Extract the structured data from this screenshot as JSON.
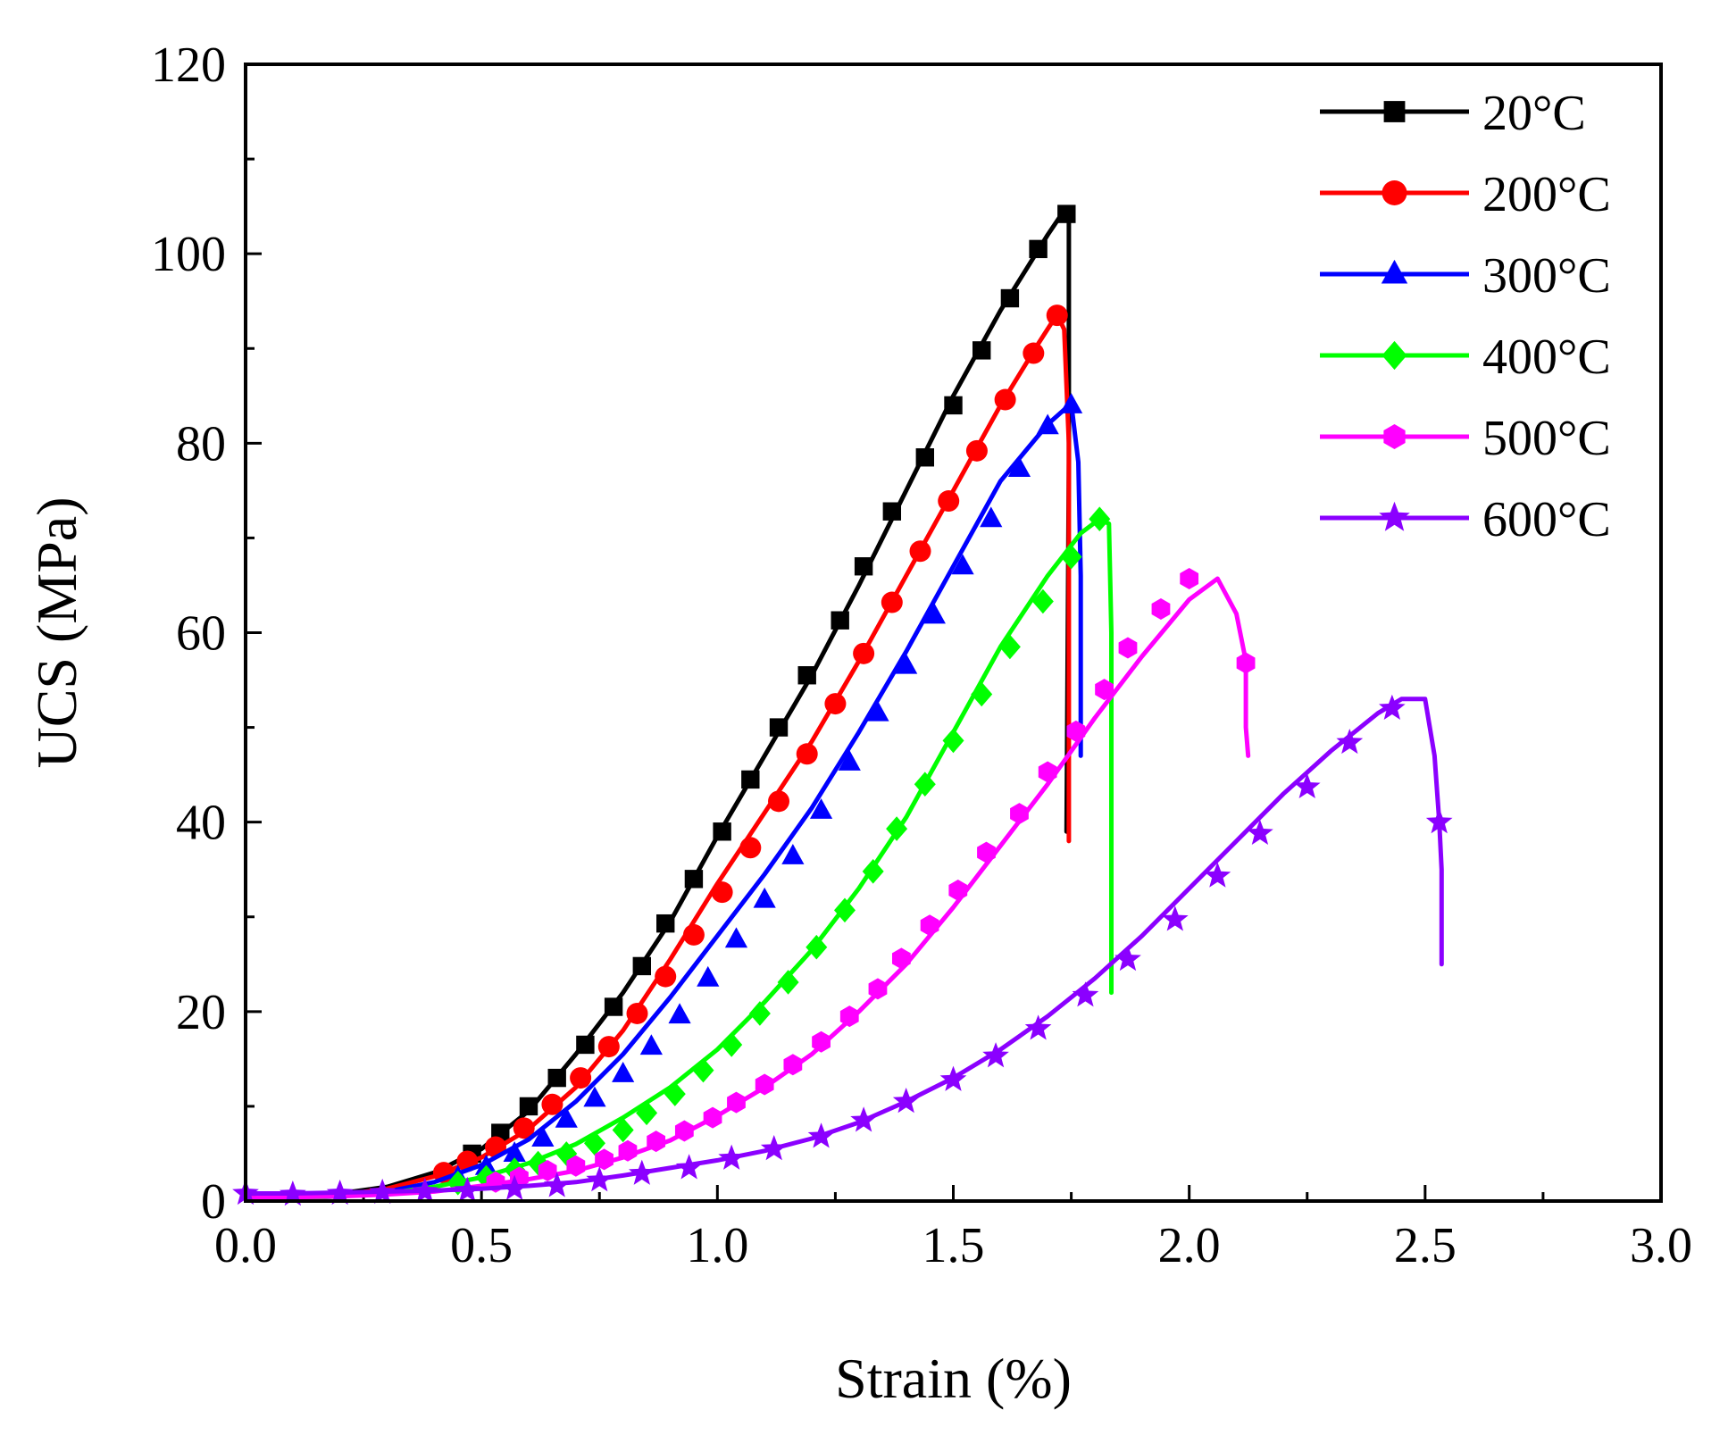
{
  "chart_data": {
    "type": "line",
    "title": "",
    "xlabel": "Strain (%)",
    "ylabel": "UCS (MPa)",
    "xlim": [
      0.0,
      3.0
    ],
    "ylim": [
      0,
      120
    ],
    "x_ticks": [
      "0.0",
      "0.5",
      "1.0",
      "1.5",
      "2.0",
      "2.5",
      "3.0"
    ],
    "y_ticks": [
      "0",
      "20",
      "40",
      "60",
      "80",
      "100",
      "120"
    ],
    "legend_position": "top-right",
    "series": [
      {
        "name": "20°C",
        "color": "#000000",
        "marker": "square",
        "line": [
          [
            0,
            0.3
          ],
          [
            0.1,
            0.4
          ],
          [
            0.2,
            0.8
          ],
          [
            0.3,
            1.5
          ],
          [
            0.4,
            3.0
          ],
          [
            0.5,
            5.5
          ],
          [
            0.6,
            9.5
          ],
          [
            0.7,
            15.5
          ],
          [
            0.8,
            22.0
          ],
          [
            0.9,
            29.5
          ],
          [
            1.0,
            38.5
          ],
          [
            1.1,
            47.0
          ],
          [
            1.2,
            55.5
          ],
          [
            1.3,
            65.0
          ],
          [
            1.4,
            75.0
          ],
          [
            1.5,
            85.0
          ],
          [
            1.6,
            94.0
          ],
          [
            1.7,
            102.0
          ],
          [
            1.73,
            104.2
          ],
          [
            1.745,
            104.5
          ],
          [
            1.745,
            78.0
          ],
          [
            1.74,
            39.0
          ]
        ],
        "markers": [
          [
            0.48,
            5.0
          ],
          [
            0.54,
            7.2
          ],
          [
            0.6,
            10.0
          ],
          [
            0.66,
            13.0
          ],
          [
            0.72,
            16.5
          ],
          [
            0.78,
            20.5
          ],
          [
            0.84,
            24.8
          ],
          [
            0.89,
            29.3
          ],
          [
            0.95,
            34.0
          ],
          [
            1.01,
            39.0
          ],
          [
            1.07,
            44.5
          ],
          [
            1.13,
            50.0
          ],
          [
            1.19,
            55.5
          ],
          [
            1.26,
            61.3
          ],
          [
            1.31,
            67.0
          ],
          [
            1.37,
            72.8
          ],
          [
            1.44,
            78.5
          ],
          [
            1.5,
            84.0
          ],
          [
            1.56,
            89.8
          ],
          [
            1.62,
            95.3
          ],
          [
            1.68,
            100.5
          ],
          [
            1.74,
            104.2
          ]
        ]
      },
      {
        "name": "200°C",
        "color": "#ff0000",
        "marker": "circle",
        "line": [
          [
            0,
            0.2
          ],
          [
            0.1,
            0.3
          ],
          [
            0.2,
            0.6
          ],
          [
            0.3,
            1.3
          ],
          [
            0.4,
            2.6
          ],
          [
            0.5,
            4.6
          ],
          [
            0.6,
            7.6
          ],
          [
            0.7,
            12.0
          ],
          [
            0.8,
            18.0
          ],
          [
            0.9,
            25.5
          ],
          [
            1.0,
            33.5
          ],
          [
            1.1,
            41.0
          ],
          [
            1.2,
            48.5
          ],
          [
            1.3,
            57.0
          ],
          [
            1.4,
            66.0
          ],
          [
            1.5,
            75.0
          ],
          [
            1.6,
            84.0
          ],
          [
            1.68,
            90.5
          ],
          [
            1.72,
            93.6
          ],
          [
            1.735,
            92.0
          ],
          [
            1.745,
            80.0
          ],
          [
            1.745,
            55.0
          ],
          [
            1.745,
            38.0
          ]
        ],
        "markers": [
          [
            0.42,
            3.0
          ],
          [
            0.47,
            4.2
          ],
          [
            0.53,
            5.7
          ],
          [
            0.59,
            7.7
          ],
          [
            0.65,
            10.2
          ],
          [
            0.71,
            13.0
          ],
          [
            0.77,
            16.3
          ],
          [
            0.83,
            19.8
          ],
          [
            0.89,
            23.7
          ],
          [
            0.95,
            28.1
          ],
          [
            1.01,
            32.6
          ],
          [
            1.07,
            37.3
          ],
          [
            1.13,
            42.2
          ],
          [
            1.19,
            47.2
          ],
          [
            1.25,
            52.5
          ],
          [
            1.31,
            57.8
          ],
          [
            1.37,
            63.2
          ],
          [
            1.43,
            68.6
          ],
          [
            1.49,
            73.9
          ],
          [
            1.55,
            79.2
          ],
          [
            1.61,
            84.6
          ],
          [
            1.67,
            89.5
          ],
          [
            1.72,
            93.5
          ]
        ]
      },
      {
        "name": "300°C",
        "color": "#0000ff",
        "marker": "triangle",
        "line": [
          [
            0,
            0.2
          ],
          [
            0.1,
            0.3
          ],
          [
            0.2,
            0.5
          ],
          [
            0.3,
            1.0
          ],
          [
            0.4,
            2.0
          ],
          [
            0.5,
            3.8
          ],
          [
            0.6,
            6.5
          ],
          [
            0.7,
            10.5
          ],
          [
            0.8,
            15.5
          ],
          [
            0.9,
            21.5
          ],
          [
            1.0,
            28.0
          ],
          [
            1.1,
            34.5
          ],
          [
            1.2,
            41.5
          ],
          [
            1.3,
            49.5
          ],
          [
            1.4,
            58.0
          ],
          [
            1.5,
            67.0
          ],
          [
            1.6,
            76.0
          ],
          [
            1.7,
            82.0
          ],
          [
            1.75,
            84.2
          ],
          [
            1.765,
            78.0
          ],
          [
            1.77,
            66.0
          ],
          [
            1.77,
            47.0
          ]
        ],
        "markers": [
          [
            0.45,
            2.5
          ],
          [
            0.51,
            3.6
          ],
          [
            0.57,
            5.0
          ],
          [
            0.63,
            6.6
          ],
          [
            0.68,
            8.6
          ],
          [
            0.74,
            10.8
          ],
          [
            0.8,
            13.4
          ],
          [
            0.86,
            16.3
          ],
          [
            0.92,
            19.6
          ],
          [
            0.98,
            23.5
          ],
          [
            1.04,
            27.6
          ],
          [
            1.1,
            31.8
          ],
          [
            1.16,
            36.4
          ],
          [
            1.22,
            41.2
          ],
          [
            1.28,
            46.3
          ],
          [
            1.34,
            51.5
          ],
          [
            1.4,
            56.5
          ],
          [
            1.46,
            61.8
          ],
          [
            1.52,
            67.0
          ],
          [
            1.58,
            72.0
          ],
          [
            1.64,
            77.3
          ],
          [
            1.7,
            81.8
          ],
          [
            1.75,
            84.0
          ]
        ]
      },
      {
        "name": "400°C",
        "color": "#00ff00",
        "marker": "diamond",
        "line": [
          [
            0,
            0.2
          ],
          [
            0.1,
            0.3
          ],
          [
            0.2,
            0.5
          ],
          [
            0.3,
            0.8
          ],
          [
            0.4,
            1.5
          ],
          [
            0.5,
            2.5
          ],
          [
            0.6,
            4.0
          ],
          [
            0.7,
            6.0
          ],
          [
            0.8,
            8.8
          ],
          [
            0.9,
            12.0
          ],
          [
            1.0,
            16.0
          ],
          [
            1.1,
            21.0
          ],
          [
            1.2,
            26.5
          ],
          [
            1.3,
            33.0
          ],
          [
            1.4,
            40.5
          ],
          [
            1.5,
            49.5
          ],
          [
            1.6,
            58.5
          ],
          [
            1.7,
            66.0
          ],
          [
            1.77,
            70.5
          ],
          [
            1.81,
            72.0
          ],
          [
            1.83,
            71.5
          ],
          [
            1.835,
            60.0
          ],
          [
            1.835,
            40.0
          ],
          [
            1.835,
            22.0
          ]
        ],
        "markers": [
          [
            0.45,
            1.9
          ],
          [
            0.51,
            2.5
          ],
          [
            0.57,
            3.3
          ],
          [
            0.62,
            4.0
          ],
          [
            0.68,
            5.0
          ],
          [
            0.74,
            6.1
          ],
          [
            0.8,
            7.5
          ],
          [
            0.85,
            9.3
          ],
          [
            0.91,
            11.3
          ],
          [
            0.97,
            13.8
          ],
          [
            1.03,
            16.5
          ],
          [
            1.09,
            19.8
          ],
          [
            1.15,
            23.1
          ],
          [
            1.21,
            26.8
          ],
          [
            1.27,
            30.7
          ],
          [
            1.33,
            34.8
          ],
          [
            1.38,
            39.3
          ],
          [
            1.44,
            44.0
          ],
          [
            1.5,
            48.6
          ],
          [
            1.56,
            53.5
          ],
          [
            1.62,
            58.5
          ],
          [
            1.69,
            63.3
          ],
          [
            1.75,
            68.0
          ],
          [
            1.81,
            72.0
          ]
        ]
      },
      {
        "name": "500°C",
        "color": "#ff00ff",
        "marker": "hexagon",
        "line": [
          [
            0,
            0.3
          ],
          [
            0.1,
            0.4
          ],
          [
            0.2,
            0.5
          ],
          [
            0.3,
            0.7
          ],
          [
            0.4,
            1.0
          ],
          [
            0.5,
            1.6
          ],
          [
            0.6,
            2.3
          ],
          [
            0.7,
            3.2
          ],
          [
            0.8,
            4.6
          ],
          [
            0.9,
            6.4
          ],
          [
            1.0,
            9.0
          ],
          [
            1.1,
            12.0
          ],
          [
            1.2,
            15.5
          ],
          [
            1.3,
            20.0
          ],
          [
            1.4,
            25.0
          ],
          [
            1.5,
            31.0
          ],
          [
            1.6,
            37.5
          ],
          [
            1.7,
            44.0
          ],
          [
            1.8,
            51.0
          ],
          [
            1.9,
            57.5
          ],
          [
            2.0,
            63.5
          ],
          [
            2.06,
            65.7
          ],
          [
            2.1,
            62.0
          ],
          [
            2.12,
            57.0
          ],
          [
            2.12,
            50.0
          ],
          [
            2.125,
            47.0
          ]
        ],
        "markers": [
          [
            0.53,
            2.0
          ],
          [
            0.58,
            2.5
          ],
          [
            0.64,
            3.2
          ],
          [
            0.7,
            3.7
          ],
          [
            0.76,
            4.4
          ],
          [
            0.81,
            5.3
          ],
          [
            0.87,
            6.3
          ],
          [
            0.93,
            7.4
          ],
          [
            0.99,
            8.8
          ],
          [
            1.04,
            10.4
          ],
          [
            1.1,
            12.3
          ],
          [
            1.16,
            14.4
          ],
          [
            1.22,
            16.8
          ],
          [
            1.28,
            19.5
          ],
          [
            1.34,
            22.4
          ],
          [
            1.39,
            25.6
          ],
          [
            1.45,
            29.1
          ],
          [
            1.51,
            32.8
          ],
          [
            1.57,
            36.8
          ],
          [
            1.64,
            40.9
          ],
          [
            1.7,
            45.3
          ],
          [
            1.76,
            49.6
          ],
          [
            1.82,
            54.0
          ],
          [
            1.87,
            58.4
          ],
          [
            1.94,
            62.5
          ],
          [
            2.0,
            65.7
          ],
          [
            2.12,
            56.8
          ]
        ]
      },
      {
        "name": "600°C",
        "color": "#8b00ff",
        "marker": "star",
        "line": [
          [
            0,
            0.8
          ],
          [
            0.1,
            0.8
          ],
          [
            0.2,
            0.9
          ],
          [
            0.3,
            1.0
          ],
          [
            0.4,
            1.1
          ],
          [
            0.5,
            1.3
          ],
          [
            0.6,
            1.6
          ],
          [
            0.7,
            2.0
          ],
          [
            0.8,
            2.7
          ],
          [
            0.9,
            3.5
          ],
          [
            1.0,
            4.3
          ],
          [
            1.1,
            5.3
          ],
          [
            1.2,
            6.6
          ],
          [
            1.3,
            8.3
          ],
          [
            1.4,
            10.5
          ],
          [
            1.5,
            13.0
          ],
          [
            1.6,
            16.0
          ],
          [
            1.7,
            19.5
          ],
          [
            1.8,
            23.5
          ],
          [
            1.9,
            28.0
          ],
          [
            2.0,
            33.0
          ],
          [
            2.1,
            38.0
          ],
          [
            2.2,
            43.0
          ],
          [
            2.3,
            47.5
          ],
          [
            2.4,
            51.5
          ],
          [
            2.45,
            53.0
          ],
          [
            2.5,
            53.0
          ],
          [
            2.52,
            47.0
          ],
          [
            2.53,
            40.0
          ],
          [
            2.535,
            35.0
          ],
          [
            2.535,
            25.0
          ]
        ],
        "markers": [
          [
            0,
            0.8
          ],
          [
            0.1,
            0.7
          ],
          [
            0.2,
            0.8
          ],
          [
            0.29,
            0.9
          ],
          [
            0.38,
            1.0
          ],
          [
            0.47,
            1.1
          ],
          [
            0.57,
            1.3
          ],
          [
            0.66,
            1.6
          ],
          [
            0.75,
            2.2
          ],
          [
            0.84,
            2.9
          ],
          [
            0.94,
            3.5
          ],
          [
            1.03,
            4.5
          ],
          [
            1.12,
            5.5
          ],
          [
            1.22,
            6.8
          ],
          [
            1.31,
            8.5
          ],
          [
            1.4,
            10.5
          ],
          [
            1.5,
            12.8
          ],
          [
            1.59,
            15.3
          ],
          [
            1.68,
            18.2
          ],
          [
            1.78,
            21.7
          ],
          [
            1.87,
            25.5
          ],
          [
            1.97,
            29.7
          ],
          [
            2.06,
            34.3
          ],
          [
            2.15,
            38.8
          ],
          [
            2.25,
            43.7
          ],
          [
            2.34,
            48.4
          ],
          [
            2.43,
            52.0
          ],
          [
            2.53,
            40.0
          ]
        ]
      }
    ]
  }
}
